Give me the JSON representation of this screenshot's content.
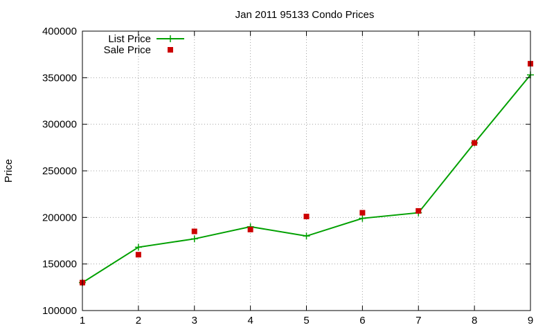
{
  "chart_data": {
    "type": "line",
    "title": "Jan 2011 95133 Condo Prices",
    "xlabel": "",
    "ylabel": "Price",
    "xlim": [
      1,
      9
    ],
    "ylim": [
      100000,
      400000
    ],
    "x_ticks": [
      1,
      2,
      3,
      4,
      5,
      6,
      7,
      8,
      9
    ],
    "y_ticks": [
      100000,
      150000,
      200000,
      250000,
      300000,
      350000,
      400000
    ],
    "grid": true,
    "legend_position": "top-left",
    "x": [
      1,
      2,
      3,
      4,
      5,
      6,
      7,
      8,
      9
    ],
    "series": [
      {
        "name": "List Price",
        "style": "line-points",
        "marker": "plus",
        "color": "#00a000",
        "values": [
          130000,
          168000,
          177000,
          190000,
          180000,
          199000,
          205000,
          280000,
          353000
        ]
      },
      {
        "name": "Sale Price",
        "style": "points",
        "marker": "square",
        "color": "#cc0000",
        "values": [
          130000,
          160000,
          185000,
          187000,
          201000,
          205000,
          207000,
          280000,
          365000
        ]
      }
    ]
  }
}
